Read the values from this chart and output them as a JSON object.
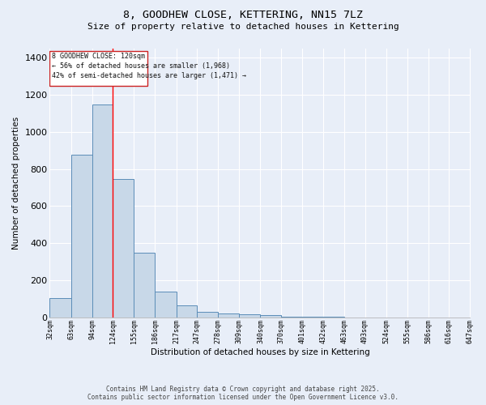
{
  "title": "8, GOODHEW CLOSE, KETTERING, NN15 7LZ",
  "subtitle": "Size of property relative to detached houses in Kettering",
  "xlabel": "Distribution of detached houses by size in Kettering",
  "ylabel": "Number of detached properties",
  "bar_color": "#c8d8e8",
  "bar_edge_color": "#5b8db8",
  "bg_color": "#e8eef8",
  "grid_color": "#ffffff",
  "annotation_box_color": "#cc2222",
  "redline_x": 124,
  "annotation_text_line1": "8 GOODHEW CLOSE: 120sqm",
  "annotation_text_line2": "← 56% of detached houses are smaller (1,968)",
  "annotation_text_line3": "42% of semi-detached houses are larger (1,471) →",
  "footer_line1": "Contains HM Land Registry data © Crown copyright and database right 2025.",
  "footer_line2": "Contains public sector information licensed under the Open Government Licence v3.0.",
  "bin_edges": [
    32,
    63,
    94,
    124,
    155,
    186,
    217,
    247,
    278,
    309,
    340,
    370,
    401,
    432,
    463,
    493,
    524,
    555,
    586,
    616,
    647
  ],
  "counts": [
    103,
    876,
    1150,
    748,
    350,
    140,
    62,
    28,
    20,
    14,
    10,
    5,
    3,
    1,
    0,
    0,
    0,
    0,
    0,
    0
  ],
  "ylim": [
    0,
    1450
  ],
  "yticks": [
    0,
    200,
    400,
    600,
    800,
    1000,
    1200,
    1400
  ]
}
